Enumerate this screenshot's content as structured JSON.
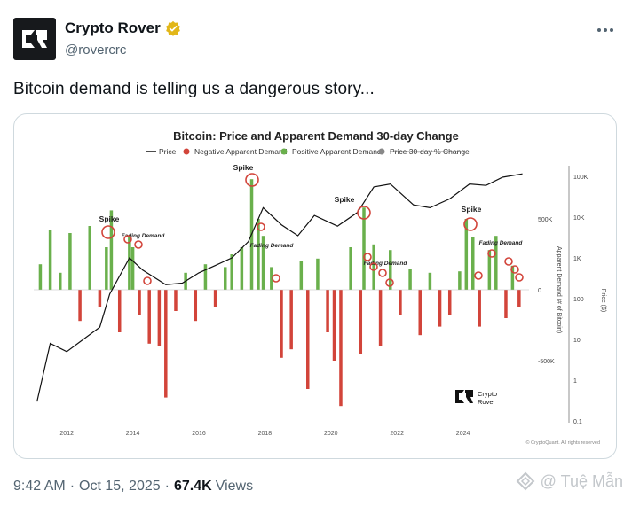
{
  "author": {
    "name": "Crypto Rover",
    "handle": "@rovercrc",
    "avatar_text": "CR",
    "verified": true,
    "badge_color": "#e2b719"
  },
  "tweet": {
    "text": "Bitcoin demand is telling us a dangerous story...",
    "time": "9:42 AM",
    "date": "Oct 15, 2025",
    "views_count": "67.4K",
    "views_label": "Views"
  },
  "watermark": "@ Tuệ Mẫn",
  "chart_data": {
    "type": "bar",
    "title": "Bitcoin: Price and Apparent Demand 30-day Change",
    "legend": [
      {
        "name": "Price",
        "color": "#111111",
        "style": "line"
      },
      {
        "name": "Negative Apparent Demand",
        "color": "#d2443a",
        "style": "dot"
      },
      {
        "name": "Positive Apparent Demand",
        "color": "#6ab04c",
        "style": "dot"
      },
      {
        "name": "Price 30-day % Change",
        "color": "#888888",
        "style": "dot-struck"
      }
    ],
    "legend_position": "top",
    "x_ticks": [
      "2012",
      "2014",
      "2016",
      "2018",
      "2020",
      "2022",
      "2024"
    ],
    "x_range": [
      2011,
      2026
    ],
    "y_left_label": "Apparent Demand (# of Bitcoin)",
    "y_left_ticks": [
      "500K",
      "0",
      "-500K"
    ],
    "y_left_range": [
      -850000,
      850000
    ],
    "y_right_label": "Price ($)",
    "y_right_ticks": [
      "100K",
      "10K",
      "1K",
      "100",
      "10",
      "1",
      "0.1"
    ],
    "y_right_scale": "log",
    "positive_colors": "#6ab04c",
    "negative_colors": "#d2443a",
    "annotations": [
      "Spike",
      "Fading Demand",
      "Spike",
      "Fading Demand",
      "Spike",
      "Fading Demand",
      "Spike",
      "Fading Demand"
    ],
    "brand": "Crypto Rover",
    "credit": "© CryptoQuant. All rights reserved",
    "series": [
      {
        "name": "Apparent Demand",
        "x": [
          2011.2,
          2011.5,
          2011.8,
          2012.1,
          2012.4,
          2012.7,
          2013.0,
          2013.2,
          2013.35,
          2013.6,
          2013.9,
          2014.0,
          2014.2,
          2014.5,
          2014.8,
          2015.0,
          2015.3,
          2015.6,
          2015.9,
          2016.2,
          2016.5,
          2016.8,
          2017.0,
          2017.3,
          2017.6,
          2017.8,
          2017.95,
          2018.2,
          2018.5,
          2018.8,
          2019.1,
          2019.3,
          2019.6,
          2019.9,
          2020.1,
          2020.3,
          2020.6,
          2020.9,
          2021.0,
          2021.3,
          2021.5,
          2021.8,
          2022.1,
          2022.4,
          2022.7,
          2023.0,
          2023.3,
          2023.6,
          2023.9,
          2024.1,
          2024.3,
          2024.5,
          2024.8,
          2025.0,
          2025.3,
          2025.5,
          2025.7
        ],
        "values": [
          180000,
          420000,
          120000,
          400000,
          -220000,
          450000,
          -120000,
          300000,
          560000,
          -300000,
          380000,
          300000,
          -180000,
          -380000,
          -400000,
          -760000,
          -150000,
          120000,
          -220000,
          180000,
          -120000,
          160000,
          250000,
          300000,
          780000,
          500000,
          380000,
          160000,
          -480000,
          -420000,
          200000,
          -700000,
          220000,
          -300000,
          -500000,
          -820000,
          300000,
          -450000,
          580000,
          320000,
          -400000,
          280000,
          -180000,
          150000,
          -320000,
          120000,
          -260000,
          -180000,
          130000,
          500000,
          370000,
          -260000,
          280000,
          380000,
          -200000,
          170000,
          -120000
        ]
      },
      {
        "name": "Price",
        "x": [
          2011.1,
          2011.5,
          2012.0,
          2012.5,
          2013.0,
          2013.3,
          2013.9,
          2014.3,
          2015.0,
          2015.5,
          2016.0,
          2016.5,
          2017.0,
          2017.5,
          2017.95,
          2018.5,
          2019.0,
          2019.5,
          2020.2,
          2020.8,
          2021.3,
          2021.8,
          2022.5,
          2023.0,
          2023.6,
          2024.2,
          2024.7,
          2025.2,
          2025.8
        ],
        "values": [
          0.3,
          8,
          5,
          10,
          20,
          130,
          1000,
          500,
          220,
          240,
          430,
          650,
          1000,
          2500,
          17000,
          6500,
          3500,
          11000,
          6000,
          13000,
          55000,
          65000,
          20000,
          17000,
          28000,
          65000,
          60000,
          95000,
          115000
        ]
      }
    ]
  }
}
